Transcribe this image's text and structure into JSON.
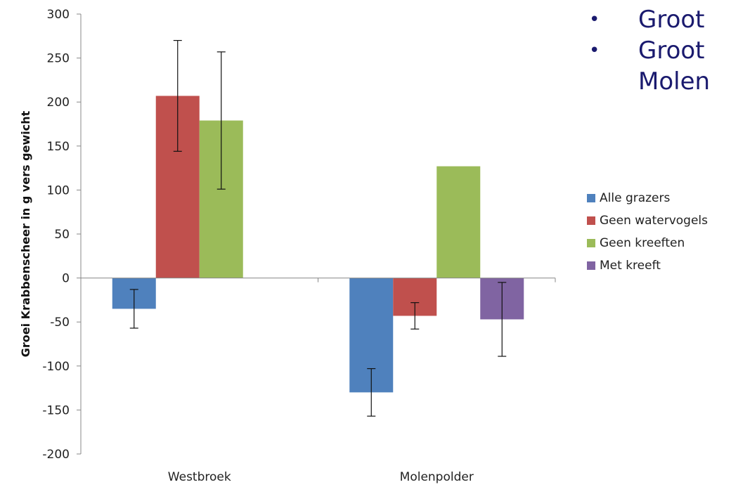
{
  "chart_data": {
    "type": "bar",
    "categories": [
      "Westbroek",
      "Molenpolder"
    ],
    "series": [
      {
        "name": "Alle grazers",
        "color": "#4f81bd",
        "values": [
          -35,
          -130
        ],
        "errors": [
          22,
          27
        ]
      },
      {
        "name": "Geen watervogels",
        "color": "#c0504d",
        "values": [
          207,
          -43
        ],
        "errors": [
          63,
          15
        ]
      },
      {
        "name": "Geen kreeften",
        "color": "#9bbb59",
        "values": [
          179,
          127
        ],
        "errors": [
          78,
          null
        ]
      },
      {
        "name": "Met kreeft",
        "color": "#8064a2",
        "values": [
          null,
          -47
        ],
        "errors": [
          null,
          42
        ]
      }
    ],
    "ylabel": "Groei Krabbenscheer in g vers gewicht",
    "ylim": [
      -200,
      300
    ],
    "yticks": [
      "300",
      "250",
      "200",
      "150",
      "100",
      "50",
      "0",
      "-50",
      "-100",
      "-150",
      "-200"
    ],
    "legend_position": "right"
  },
  "bullets": [
    {
      "symbol": "•",
      "text": "Groot"
    },
    {
      "symbol": "•",
      "text": "Groot\nMolen"
    }
  ]
}
